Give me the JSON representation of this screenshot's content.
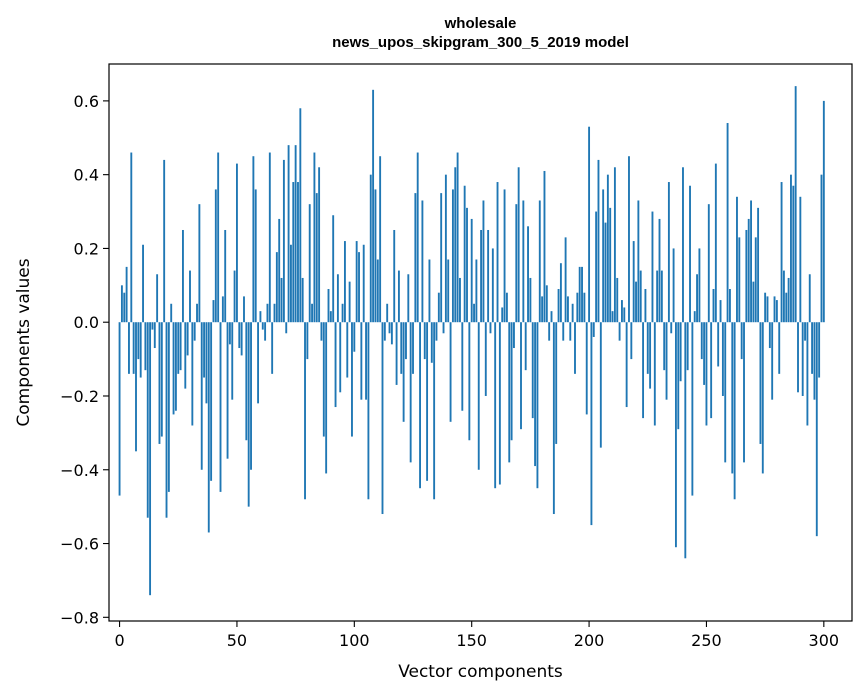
{
  "chart_data": {
    "type": "bar",
    "title": [
      "wholesale",
      "news_upos_skipgram_300_5_2019 model"
    ],
    "xlabel": "Vector components",
    "ylabel": "Components values",
    "xlim": [
      -4.5,
      312
    ],
    "ylim": [
      -0.81,
      0.7
    ],
    "xticks": [
      0,
      50,
      100,
      150,
      200,
      250,
      300
    ],
    "xtick_labels": [
      "0",
      "50",
      "100",
      "150",
      "200",
      "250",
      "300"
    ],
    "yticks": [
      -0.8,
      -0.6,
      -0.4,
      -0.2,
      0.0,
      0.2,
      0.4,
      0.6
    ],
    "ytick_labels": [
      "−0.8",
      "−0.6",
      "−0.4",
      "−0.2",
      "0.0",
      "0.2",
      "0.4",
      "0.6"
    ],
    "grid": false,
    "bar_color": "#1f77b4",
    "values": [
      -0.47,
      0.1,
      0.08,
      0.15,
      -0.14,
      0.46,
      -0.14,
      -0.35,
      -0.1,
      -0.15,
      0.21,
      -0.13,
      -0.53,
      -0.74,
      -0.02,
      -0.07,
      0.13,
      -0.33,
      -0.31,
      0.44,
      -0.53,
      -0.46,
      0.05,
      -0.25,
      -0.24,
      -0.14,
      -0.13,
      0.25,
      -0.18,
      -0.09,
      0.14,
      -0.28,
      -0.05,
      0.05,
      0.32,
      -0.4,
      -0.15,
      -0.22,
      -0.57,
      -0.43,
      0.06,
      0.36,
      0.46,
      -0.46,
      0.07,
      0.25,
      -0.37,
      -0.06,
      -0.21,
      0.14,
      0.43,
      -0.07,
      -0.09,
      0.07,
      -0.32,
      -0.5,
      -0.4,
      0.45,
      0.36,
      -0.22,
      0.03,
      -0.02,
      -0.05,
      0.05,
      0.46,
      -0.14,
      0.05,
      0.19,
      0.28,
      0.12,
      0.44,
      -0.03,
      0.48,
      0.21,
      0.38,
      0.48,
      0.38,
      0.58,
      0.12,
      -0.48,
      -0.1,
      0.32,
      0.05,
      0.46,
      0.35,
      0.42,
      -0.05,
      -0.31,
      -0.41,
      0.09,
      0.03,
      0.29,
      -0.23,
      0.13,
      -0.19,
      0.05,
      0.22,
      -0.15,
      0.11,
      -0.31,
      -0.08,
      0.22,
      0.19,
      -0.21,
      0.21,
      -0.21,
      -0.48,
      0.4,
      0.63,
      0.36,
      0.17,
      0.45,
      -0.52,
      -0.05,
      0.05,
      -0.03,
      -0.06,
      0.25,
      -0.17,
      0.14,
      -0.14,
      -0.27,
      -0.1,
      0.13,
      -0.38,
      -0.14,
      0.35,
      0.46,
      -0.45,
      0.33,
      -0.1,
      -0.43,
      0.17,
      -0.11,
      -0.48,
      -0.05,
      0.08,
      0.35,
      -0.03,
      0.4,
      0.17,
      -0.27,
      0.36,
      0.42,
      0.46,
      0.12,
      -0.24,
      0.37,
      0.31,
      -0.32,
      0.28,
      0.05,
      0.17,
      -0.4,
      0.25,
      0.33,
      -0.2,
      0.25,
      -0.03,
      0.2,
      -0.45,
      0.38,
      -0.44,
      0.04,
      0.36,
      0.08,
      -0.38,
      -0.32,
      -0.07,
      0.32,
      0.42,
      -0.29,
      0.33,
      -0.13,
      0.26,
      0.12,
      -0.26,
      -0.39,
      -0.45,
      0.33,
      0.07,
      0.41,
      0.1,
      -0.05,
      0.03,
      -0.52,
      -0.33,
      0.09,
      0.16,
      -0.05,
      0.23,
      0.07,
      -0.05,
      0.05,
      -0.14,
      0.08,
      0.15,
      0.15,
      0.08,
      -0.25,
      0.53,
      -0.55,
      -0.04,
      0.3,
      0.44,
      -0.34,
      0.36,
      0.27,
      0.4,
      0.31,
      0.03,
      0.42,
      0.12,
      -0.05,
      0.06,
      0.04,
      -0.23,
      0.45,
      -0.1,
      0.22,
      0.11,
      0.33,
      0.14,
      -0.26,
      0.09,
      -0.14,
      -0.18,
      0.3,
      -0.28,
      0.14,
      0.28,
      0.14,
      -0.13,
      -0.21,
      0.38,
      -0.03,
      0.2,
      -0.61,
      -0.29,
      -0.16,
      0.42,
      -0.64,
      -0.13,
      0.37,
      -0.47,
      0.03,
      0.13,
      0.2,
      -0.1,
      -0.17,
      -0.28,
      0.32,
      -0.26,
      0.09,
      0.43,
      -0.12,
      0.06,
      -0.2,
      -0.38,
      0.54,
      0.09,
      -0.41,
      -0.48,
      0.34,
      0.23,
      -0.1,
      -0.38,
      0.25,
      0.28,
      0.33,
      0.11,
      0.23,
      0.31,
      -0.33,
      -0.41,
      0.08,
      0.07,
      -0.07,
      -0.21,
      0.07,
      0.06,
      -0.14,
      0.38,
      0.14,
      0.08,
      0.12,
      0.4,
      0.37,
      0.64,
      -0.19,
      0.34,
      -0.2,
      -0.05,
      -0.28,
      0.13,
      -0.14,
      -0.21,
      -0.58,
      -0.15,
      0.4,
      0.6
    ]
  }
}
